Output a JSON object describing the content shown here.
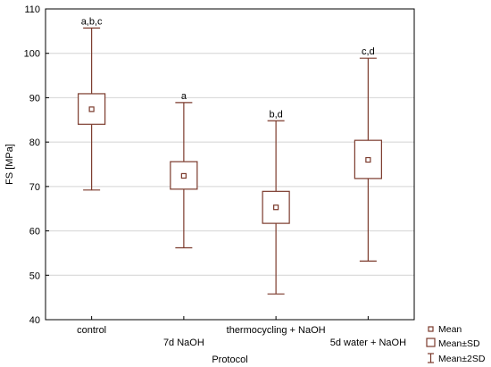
{
  "chart_data": {
    "type": "box",
    "xlabel": "Protocol",
    "ylabel": "FS [MPa]",
    "ylim": [
      40,
      110
    ],
    "yticks": [
      40,
      50,
      60,
      70,
      80,
      90,
      100,
      110
    ],
    "grid": true,
    "legend_position": "bottom-right",
    "categories": [
      "control",
      "7d NaOH",
      "thermocycling + NaOH",
      "5d water + NaOH"
    ],
    "series": [
      {
        "category": "control",
        "mean": 87.4,
        "sd_low": 84.0,
        "sd_high": 90.9,
        "two_sd_low": 69.2,
        "two_sd_high": 105.7,
        "annotation": "a,b,c"
      },
      {
        "category": "7d NaOH",
        "mean": 72.4,
        "sd_low": 69.4,
        "sd_high": 75.6,
        "two_sd_low": 56.2,
        "two_sd_high": 88.9,
        "annotation": "a"
      },
      {
        "category": "thermocycling + NaOH",
        "mean": 65.3,
        "sd_low": 61.7,
        "sd_high": 68.9,
        "two_sd_low": 45.8,
        "two_sd_high": 84.8,
        "annotation": "b,d"
      },
      {
        "category": "5d water + NaOH",
        "mean": 76.0,
        "sd_low": 71.8,
        "sd_high": 80.4,
        "two_sd_low": 53.2,
        "two_sd_high": 98.9,
        "annotation": "c,d"
      }
    ],
    "legend": [
      "Mean",
      "Mean±SD",
      "Mean±2SD"
    ],
    "colors": {
      "box": "#7b3a2c",
      "grid": "#d4d4d4",
      "axis": "#000000"
    }
  }
}
